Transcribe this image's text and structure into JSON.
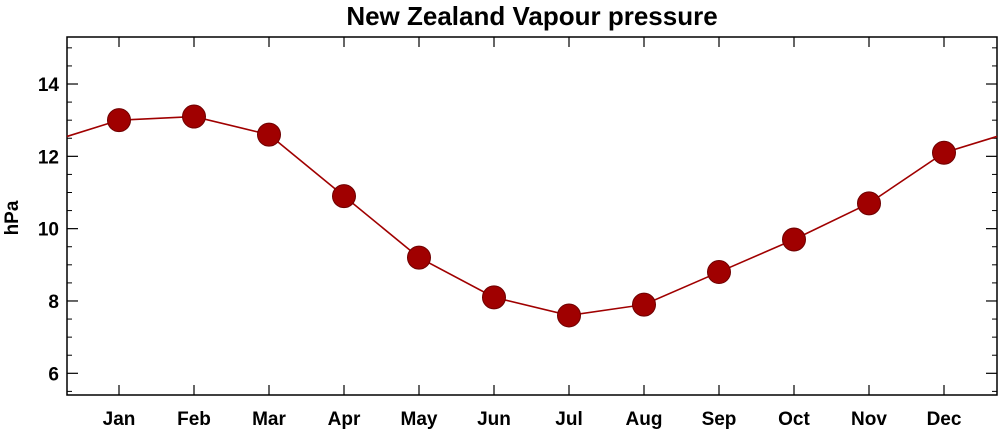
{
  "chart_data": {
    "type": "line",
    "title": "New Zealand Vapour pressure",
    "xlabel": "",
    "ylabel": "hPa",
    "categories": [
      "Jan",
      "Feb",
      "Mar",
      "Apr",
      "May",
      "Jun",
      "Jul",
      "Aug",
      "Sep",
      "Oct",
      "Nov",
      "Dec"
    ],
    "series": [
      {
        "values": [
          13.0,
          13.1,
          12.6,
          10.9,
          9.2,
          8.1,
          7.6,
          7.9,
          8.8,
          9.7,
          10.7,
          12.1
        ]
      }
    ],
    "yticks": [
      6,
      8,
      10,
      12,
      14
    ],
    "ylim": [
      5.4,
      15.3
    ],
    "grid": false,
    "legend": "none",
    "colors": {
      "series": "#a00000",
      "axis": "#000000"
    }
  }
}
